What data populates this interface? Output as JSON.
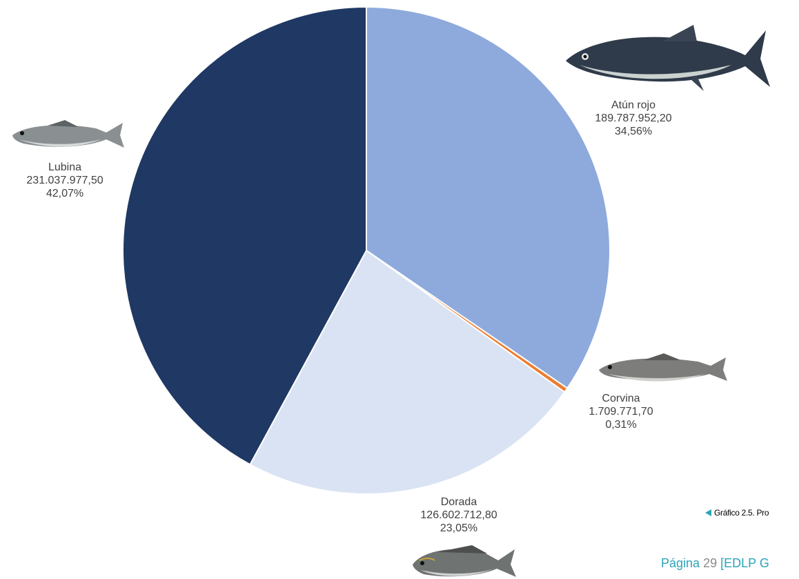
{
  "chart_data": {
    "type": "pie",
    "slices": [
      {
        "name": "Atún rojo",
        "value": "189.787.952,20",
        "percent": "34,56%",
        "fraction": 0.3456,
        "color": "#8eaadc"
      },
      {
        "name": "Corvina",
        "value": "1.709.771,70",
        "percent": "0,31%",
        "fraction": 0.0031,
        "color": "#ed7d31"
      },
      {
        "name": "Dorada",
        "value": "126.602.712,80",
        "percent": "23,05%",
        "fraction": 0.2305,
        "color": "#dae3f3"
      },
      {
        "name": "Lubina",
        "value": "231.037.977,50",
        "percent": "42,07%",
        "fraction": 0.4207,
        "color": "#1f3864"
      }
    ],
    "start": "12 o'clock",
    "direction": "clockwise",
    "legend": "none"
  },
  "fish_icons": {
    "atun": "tuna-fish-image",
    "lubina": "sea-bass-fish-image",
    "corvina": "meagre-fish-image",
    "dorada": "sea-bream-fish-image"
  },
  "caption": {
    "text": "Gráfico 2.5. Pro"
  },
  "footer": {
    "label": "Página",
    "number": "29",
    "rest": "[EDLP G"
  }
}
